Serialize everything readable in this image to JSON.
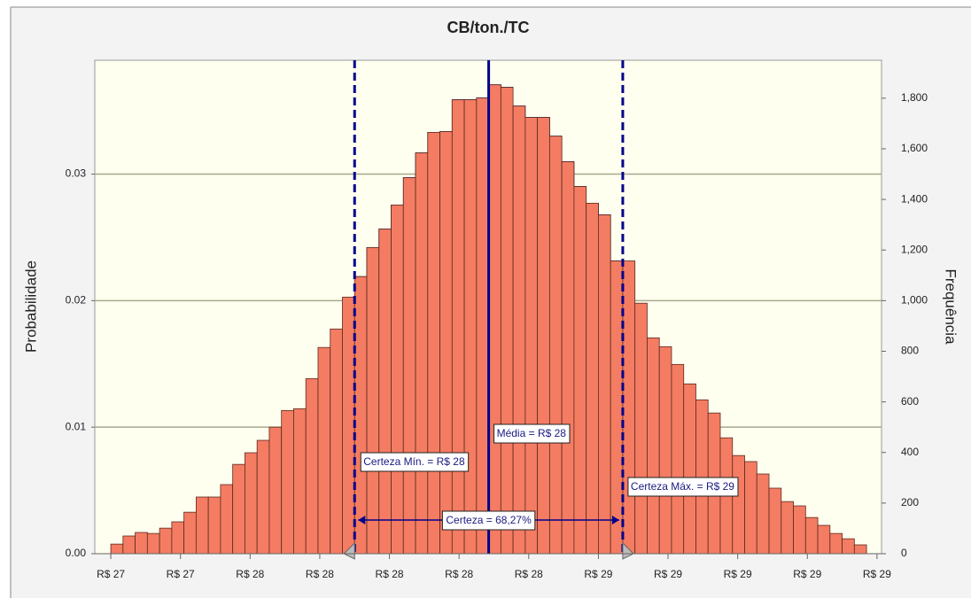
{
  "chart_data": {
    "type": "histogram",
    "title": "CB/ton./TC",
    "ylabel": "Probabilidade",
    "y2label": "Frequência",
    "bins": [
      27.2,
      27.235,
      27.27,
      27.305,
      27.34,
      27.375,
      27.41,
      27.445,
      27.48,
      27.515,
      27.55,
      27.585,
      27.62,
      27.655,
      27.69,
      27.725,
      27.76,
      27.795,
      27.83,
      27.865,
      27.9,
      27.935,
      27.97,
      28.005,
      28.04,
      28.075,
      28.11,
      28.145,
      28.18,
      28.215,
      28.25,
      28.285,
      28.32,
      28.355,
      28.39,
      28.425,
      28.46,
      28.495,
      28.53,
      28.565,
      28.6,
      28.635,
      28.67,
      28.705,
      28.74,
      28.775,
      28.81,
      28.845,
      28.88,
      28.915,
      28.95,
      28.985,
      29.02,
      29.055,
      29.09,
      29.125,
      29.16,
      29.195,
      29.23,
      29.265,
      29.3,
      29.335,
      29.37
    ],
    "series": [
      {
        "axis": "y2",
        "color": "#f47c62",
        "highlight_color": "#1a1aff",
        "values": [
          38,
          70,
          84,
          80,
          101,
          126,
          164,
          224,
          224,
          273,
          353,
          399,
          448,
          500,
          566,
          573,
          692,
          815,
          888,
          1014,
          1095,
          1210,
          1283,
          1378,
          1486,
          1584,
          1665,
          1668,
          1794,
          1794,
          1801,
          1853,
          1843,
          1769,
          1724,
          1724,
          1650,
          1549,
          1451,
          1385,
          1339,
          1157,
          1157,
          990,
          853,
          818,
          748,
          671,
          608,
          556,
          458,
          388,
          364,
          315,
          259,
          206,
          189,
          143,
          112,
          80,
          59,
          35
        ]
      }
    ],
    "xlim": [
      27.154,
      29.413
    ],
    "xticks": [
      {
        "value": 27.2,
        "label": "R$ 27"
      },
      {
        "value": 27.4,
        "label": "R$ 27"
      },
      {
        "value": 27.6,
        "label": "R$ 28"
      },
      {
        "value": 27.8,
        "label": "R$ 28"
      },
      {
        "value": 28.0,
        "label": "R$ 28"
      },
      {
        "value": 28.2,
        "label": "R$ 28"
      },
      {
        "value": 28.4,
        "label": "R$ 28"
      },
      {
        "value": 28.6,
        "label": "R$ 29"
      },
      {
        "value": 28.8,
        "label": "R$ 29"
      },
      {
        "value": 29.0,
        "label": "R$ 29"
      },
      {
        "value": 29.2,
        "label": "R$ 29"
      },
      {
        "value": 29.4,
        "label": "R$ 29"
      }
    ],
    "ylim": [
      0,
      0.039
    ],
    "yticks": [
      {
        "value": 0,
        "label": "0.00"
      },
      0.01,
      0.02,
      0.03
    ],
    "y2lim": [
      0,
      1950
    ],
    "y2ticks": [
      0,
      200,
      400,
      600,
      800,
      {
        "value": 1000,
        "label": "1,000"
      },
      {
        "value": 1200,
        "label": "1,200"
      },
      {
        "value": 1400,
        "label": "1,400"
      },
      {
        "value": 1600,
        "label": "1,600"
      },
      {
        "value": 1800,
        "label": "1,800"
      }
    ],
    "grid": true,
    "certainty_min": {
      "value": 27.9,
      "label": "Certeza Mín. = R$ 28"
    },
    "certainty_max": {
      "value": 28.67,
      "label": "Certeza Máx. = R$ 29"
    },
    "mean": {
      "value": 28.285,
      "label": "Média = R$ 28"
    },
    "certainty_label": "Certeza = 68,27%"
  }
}
